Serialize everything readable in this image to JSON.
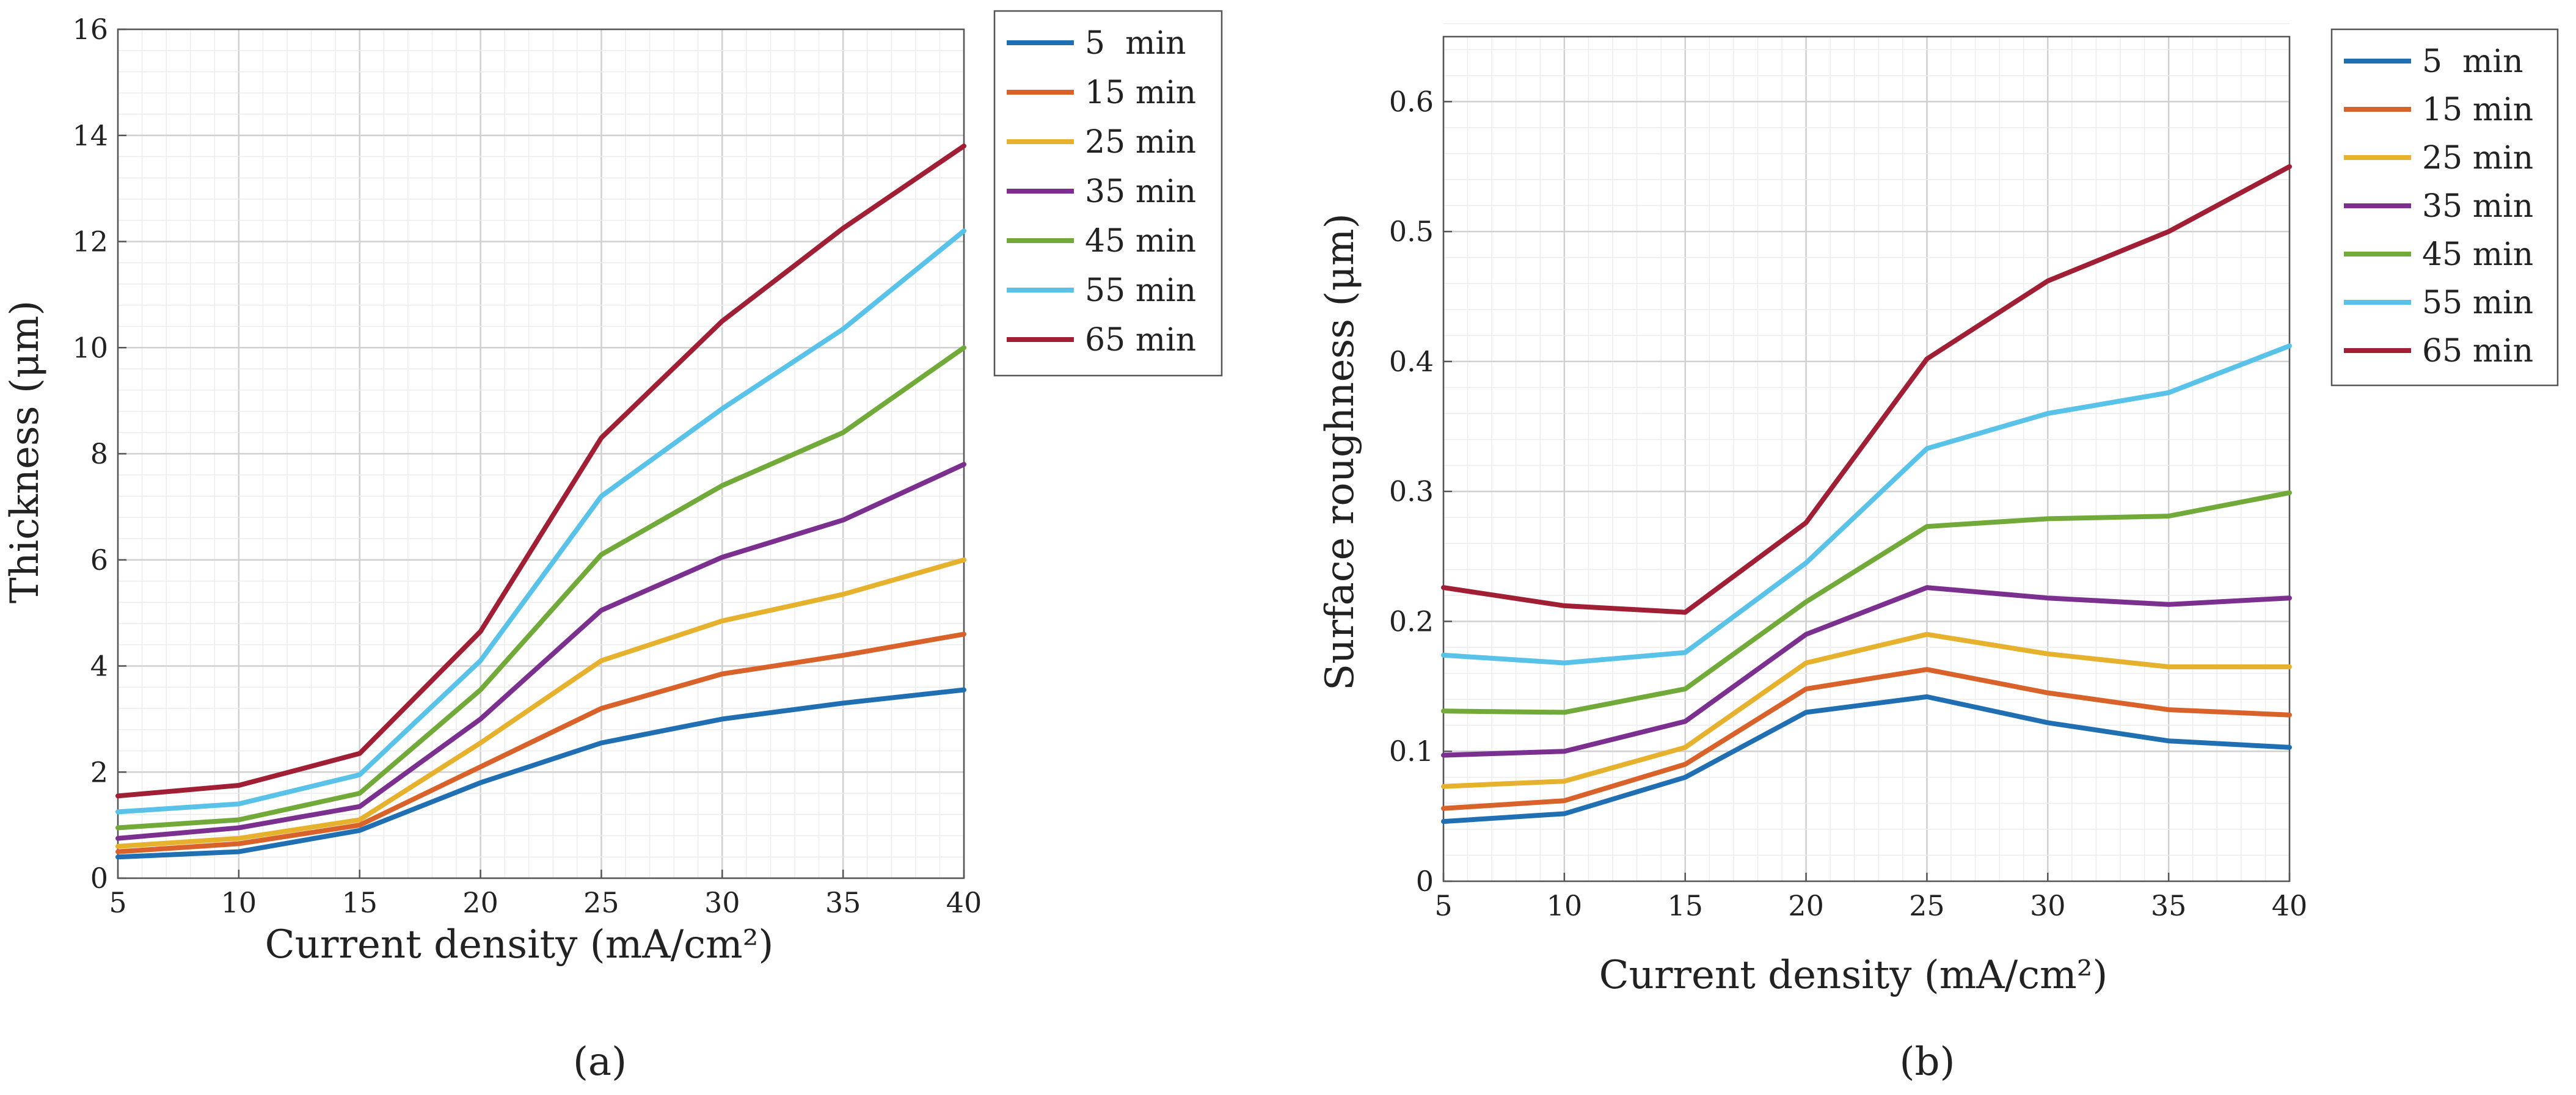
{
  "chart_data": [
    {
      "type": "line",
      "panel_label": "(a)",
      "xlabel": "Current density (mA/cm²)",
      "ylabel": "Thickness  (μm)",
      "x": [
        5,
        10,
        15,
        20,
        25,
        30,
        35,
        40
      ],
      "xlim": [
        5,
        40
      ],
      "ylim": [
        0,
        16
      ],
      "xticks": [
        "5",
        "10",
        "15",
        "20",
        "25",
        "30",
        "35",
        "40"
      ],
      "yticks": [
        "0",
        "2",
        "4",
        "6",
        "8",
        "10",
        "12",
        "14",
        "16"
      ],
      "grid": true,
      "legend_position": "outside-right-top",
      "series": [
        {
          "name": "5  min",
          "color": "#1f6fb2",
          "values": [
            0.4,
            0.5,
            0.9,
            1.8,
            2.55,
            3.0,
            3.3,
            3.55
          ]
        },
        {
          "name": "15 min",
          "color": "#d9622b",
          "values": [
            0.5,
            0.65,
            1.0,
            2.1,
            3.2,
            3.85,
            4.2,
            4.6
          ]
        },
        {
          "name": "25 min",
          "color": "#e6b12d",
          "values": [
            0.6,
            0.75,
            1.1,
            2.55,
            4.1,
            4.85,
            5.35,
            6.0
          ]
        },
        {
          "name": "35 min",
          "color": "#7b2f8e",
          "values": [
            0.75,
            0.95,
            1.35,
            3.0,
            5.05,
            6.05,
            6.75,
            7.8
          ]
        },
        {
          "name": "45 min",
          "color": "#72aa3a",
          "values": [
            0.95,
            1.1,
            1.6,
            3.55,
            6.1,
            7.4,
            8.4,
            10.0
          ]
        },
        {
          "name": "55 min",
          "color": "#58c2e8",
          "values": [
            1.25,
            1.4,
            1.95,
            4.1,
            7.2,
            8.85,
            10.35,
            12.2
          ]
        },
        {
          "name": "65 min",
          "color": "#a01f34",
          "values": [
            1.55,
            1.75,
            2.35,
            4.65,
            8.3,
            10.5,
            12.25,
            13.8
          ]
        }
      ]
    },
    {
      "type": "line",
      "panel_label": "(b)",
      "xlabel": "Current density (mA/cm²)",
      "ylabel": "Surface roughness  (μm)",
      "x": [
        5,
        10,
        15,
        20,
        25,
        30,
        35,
        40
      ],
      "xlim": [
        5,
        40
      ],
      "ylim": [
        0,
        0.65
      ],
      "xticks": [
        "5",
        "10",
        "15",
        "20",
        "25",
        "30",
        "35",
        "40"
      ],
      "yticks": [
        "0",
        "0.1",
        "0.2",
        "0.3",
        "0.4",
        "0.5",
        "0.6"
      ],
      "grid": true,
      "legend_position": "outside-right-top",
      "series": [
        {
          "name": "5  min",
          "color": "#1f6fb2",
          "values": [
            0.046,
            0.052,
            0.08,
            0.13,
            0.142,
            0.122,
            0.108,
            0.103
          ]
        },
        {
          "name": "15 min",
          "color": "#d9622b",
          "values": [
            0.056,
            0.062,
            0.09,
            0.148,
            0.163,
            0.145,
            0.132,
            0.128
          ]
        },
        {
          "name": "25 min",
          "color": "#e6b12d",
          "values": [
            0.073,
            0.077,
            0.103,
            0.168,
            0.19,
            0.175,
            0.165,
            0.165
          ]
        },
        {
          "name": "35 min",
          "color": "#7b2f8e",
          "values": [
            0.097,
            0.1,
            0.123,
            0.19,
            0.226,
            0.218,
            0.213,
            0.218
          ]
        },
        {
          "name": "45 min",
          "color": "#72aa3a",
          "values": [
            0.131,
            0.13,
            0.148,
            0.215,
            0.273,
            0.279,
            0.281,
            0.299
          ]
        },
        {
          "name": "55 min",
          "color": "#58c2e8",
          "values": [
            0.174,
            0.168,
            0.176,
            0.245,
            0.333,
            0.36,
            0.376,
            0.412
          ]
        },
        {
          "name": "65 min",
          "color": "#a01f34",
          "values": [
            0.226,
            0.212,
            0.207,
            0.276,
            0.402,
            0.462,
            0.5,
            0.55
          ]
        }
      ]
    }
  ]
}
